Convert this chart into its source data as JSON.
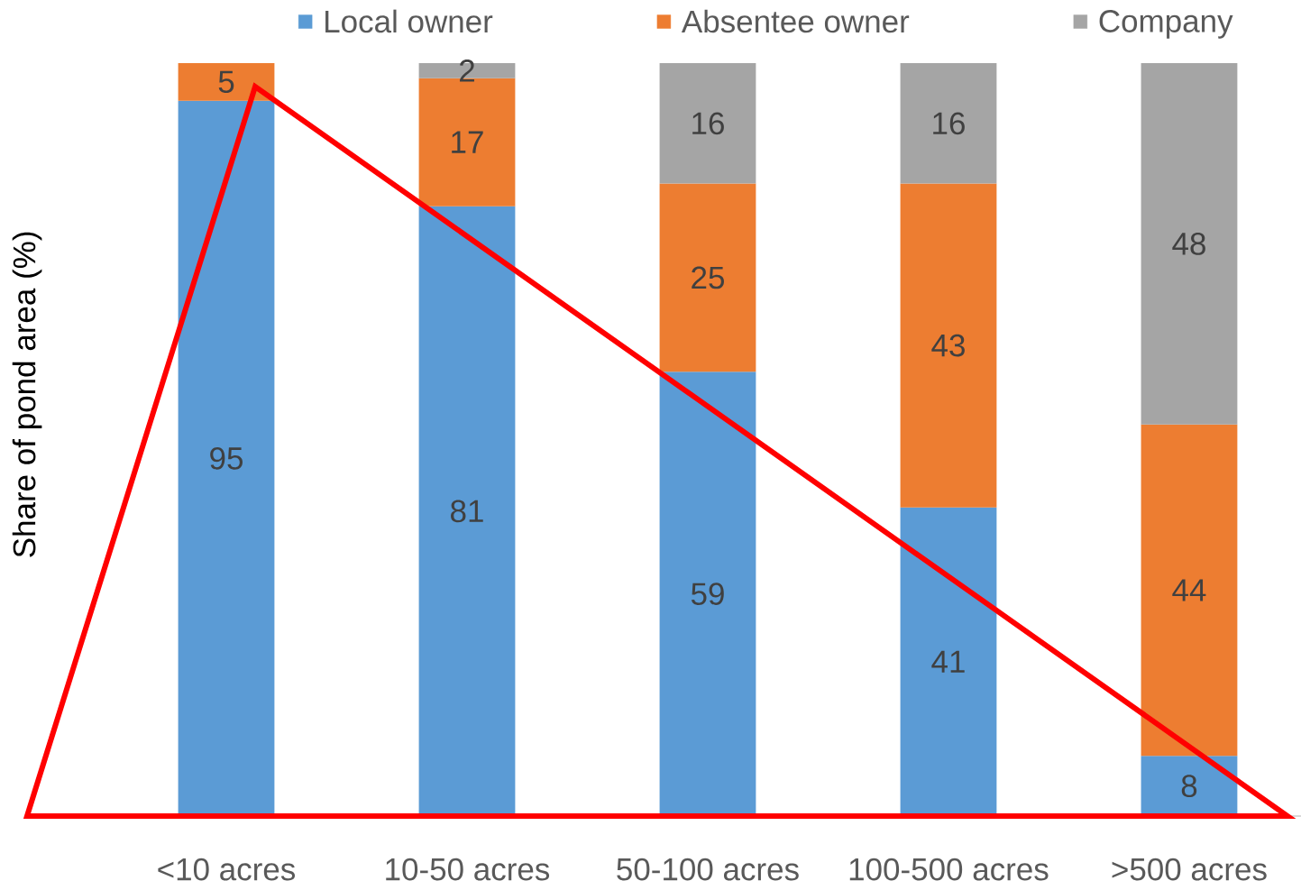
{
  "chart_data": {
    "type": "bar",
    "stacked": true,
    "ylabel": "Share of pond area (%)",
    "categories": [
      "<10 acres",
      "10-50 acres",
      "50-100 acres",
      "100-500 acres",
      ">500 acres"
    ],
    "series": [
      {
        "name": "Local owner",
        "color": "#5b9bd5",
        "values": [
          95,
          81,
          59,
          41,
          8
        ]
      },
      {
        "name": "Absentee owner",
        "color": "#ed7d31",
        "values": [
          5,
          17,
          25,
          43,
          44
        ]
      },
      {
        "name": "Company",
        "color": "#a5a5a5",
        "values": [
          null,
          2,
          16,
          16,
          48
        ]
      }
    ],
    "ylim": [
      0,
      100
    ],
    "data_labels": true,
    "legend": "top",
    "tick_labels": "x"
  }
}
